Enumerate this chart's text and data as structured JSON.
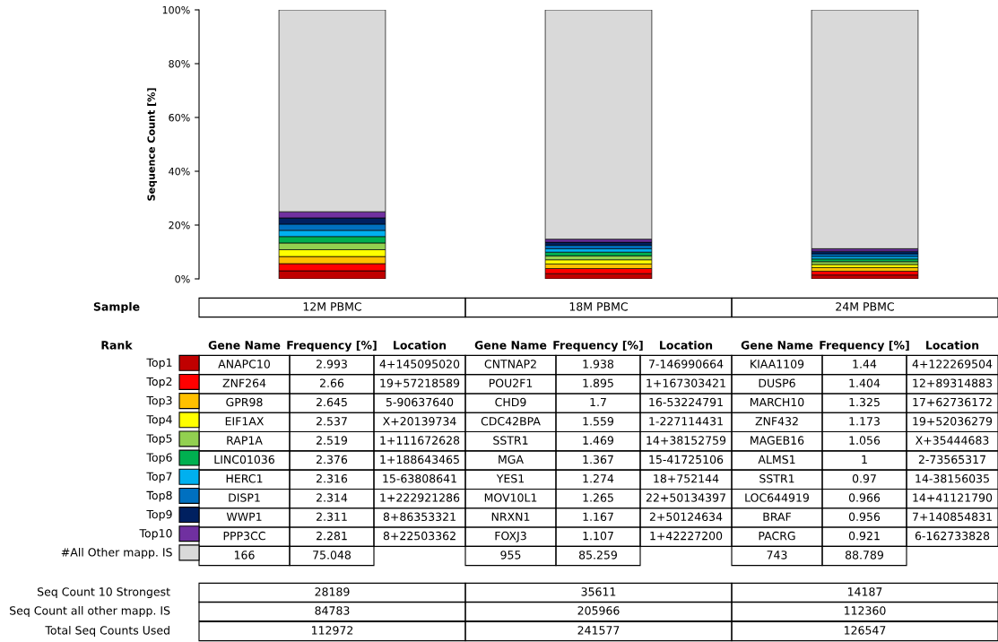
{
  "chart_data": {
    "type": "bar",
    "stacked": true,
    "ylabel": "Sequence Count [%]",
    "categories": [
      "12M PBMC",
      "18M PBMC",
      "24M PBMC"
    ],
    "ylim": [
      0,
      100
    ],
    "yticks": [
      {
        "value": 0,
        "label": "0%"
      },
      {
        "value": 20,
        "label": "20%"
      },
      {
        "value": 40,
        "label": "40%"
      },
      {
        "value": 60,
        "label": "60%"
      },
      {
        "value": 80,
        "label": "80%"
      },
      {
        "value": 100,
        "label": "100%"
      }
    ],
    "grid": false,
    "legend": "bottom",
    "data_labels": true,
    "series": [
      {
        "name": "Top1",
        "color": "#c00000",
        "values": [
          2.993,
          1.938,
          1.44
        ]
      },
      {
        "name": "Top2",
        "color": "#ff0000",
        "values": [
          2.66,
          1.895,
          1.404
        ]
      },
      {
        "name": "Top3",
        "color": "#ffc000",
        "values": [
          2.645,
          1.7,
          1.325
        ]
      },
      {
        "name": "Top4",
        "color": "#ffff00",
        "values": [
          2.537,
          1.559,
          1.173
        ]
      },
      {
        "name": "Top5",
        "color": "#92d050",
        "values": [
          2.519,
          1.469,
          1.056
        ]
      },
      {
        "name": "Top6",
        "color": "#00b050",
        "values": [
          2.376,
          1.367,
          1
        ]
      },
      {
        "name": "Top7",
        "color": "#00b0f0",
        "values": [
          2.316,
          1.274,
          0.97
        ]
      },
      {
        "name": "Top8",
        "color": "#0070c0",
        "values": [
          2.314,
          1.265,
          0.966
        ]
      },
      {
        "name": "Top9",
        "color": "#002060",
        "values": [
          2.311,
          1.167,
          0.956
        ]
      },
      {
        "name": "Top10",
        "color": "#7030a0",
        "values": [
          2.281,
          1.107,
          0.921
        ]
      },
      {
        "name": "#All Other mapp. IS",
        "color": "#d9d9d9",
        "values": [
          75.048,
          85.259,
          88.789
        ]
      }
    ],
    "annotations": [
      "Sample",
      "Rank",
      "Gene Name",
      "Frequency [%]",
      "Location",
      "Gene Name",
      "Frequency [%]",
      "Location",
      "Gene Name",
      "Frequency [%]",
      "Location",
      "ANAPC10",
      "4+145095020",
      "CNTNAP2",
      "7-146990664",
      "KIAA1109",
      "4+122269504",
      "ZNF264",
      "19+57218589",
      "POU2F1",
      "1+167303421",
      "DUSP6",
      "12+89314883",
      "GPR98",
      "5-90637640",
      "CHD9",
      "16-53224791",
      "MARCH10",
      "17+62736172",
      "EIF1AX",
      "X+20139734",
      "CDC42BPA",
      "1-227114431",
      "ZNF432",
      "19+52036279",
      "RAP1A",
      "1+111672628",
      "SSTR1",
      "14+38152759",
      "MAGEB16",
      "X+35444683",
      "LINC01036",
      "1+188643465",
      "MGA",
      "15-41725106",
      "ALMS1",
      "2-73565317",
      "HERC1",
      "15-63808641",
      "YES1",
      "18+752144",
      "SSTR1",
      "14-38156035",
      "DISP1",
      "1+222921286",
      "MOV10L1",
      "22+50134397",
      "LOC644919",
      "14+41121790",
      "WWP1",
      "8+86353321",
      "NRXN1",
      "2+50124634",
      "BRAF",
      "7+140854831",
      "PPP3CC",
      "8+22503362",
      "FOXJ3",
      "1+42227200",
      "PACRG",
      "6-162733828",
      "166",
      "955",
      "743",
      "Seq Count 10 Strongest",
      "Seq Count all other mapp. IS",
      "Total Seq Counts Used",
      "28189",
      "35611",
      "14187",
      "84783",
      "205966",
      "112360",
      "112972",
      "241577",
      "126547"
    ]
  }
}
